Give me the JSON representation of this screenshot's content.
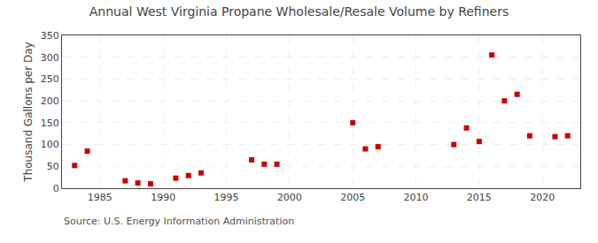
{
  "chart_data": {
    "type": "scatter",
    "title": "Annual West Virginia Propane Wholesale/Resale Volume by Refiners",
    "y_label": "Thousand Gallons per Day",
    "annotations": [
      "Source: U.S. Energy Information Administration"
    ],
    "x": [
      1983,
      1984,
      1987,
      1988,
      1989,
      1991,
      1992,
      1993,
      1997,
      1998,
      1999,
      2005,
      2006,
      2007,
      2013,
      2014,
      2015,
      2016,
      2017,
      2018,
      2019,
      2021,
      2022
    ],
    "values": [
      52,
      85,
      17,
      12,
      10,
      23,
      29,
      35,
      65,
      55,
      55,
      150,
      90,
      95,
      100,
      138,
      107,
      305,
      200,
      215,
      120,
      118,
      120
    ],
    "color": "#cc0000",
    "marker": "square",
    "xlim": [
      1982,
      2023
    ],
    "ylim": [
      0,
      350
    ],
    "xticks": [
      1985,
      1990,
      1995,
      2000,
      2005,
      2010,
      2015,
      2020
    ],
    "yticks": [
      0,
      50,
      100,
      150,
      200,
      250,
      300,
      350
    ],
    "grid": true
  }
}
